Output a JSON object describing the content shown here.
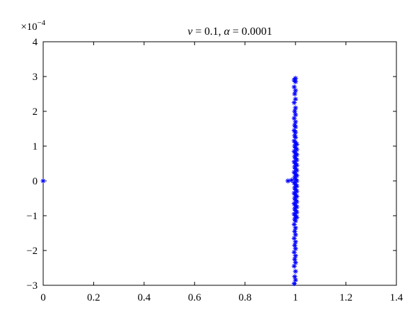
{
  "chart_data": {
    "type": "scatter",
    "title": {
      "greek1": "ν",
      "rest1": " = 0.1, ",
      "greek2": "α",
      "rest2": " = 0.0001"
    },
    "xlabel": "",
    "ylabel": "",
    "xlim": [
      0,
      1.4
    ],
    "ylim": [
      -3,
      4
    ],
    "y_exponent": "×10",
    "y_exponent_power": "−4",
    "x_ticks": [
      0,
      0.2,
      0.4,
      0.6,
      0.8,
      1.0,
      1.2,
      1.4
    ],
    "x_tick_labels": [
      "0",
      "0.2",
      "0.4",
      "0.6",
      "0.8",
      "1",
      "1.2",
      "1.4"
    ],
    "y_ticks": [
      -3,
      -2,
      -1,
      0,
      1,
      2,
      3,
      4
    ],
    "y_tick_labels": [
      "−3",
      "−2",
      "−1",
      "0",
      "1",
      "2",
      "3",
      "4"
    ],
    "grid": false,
    "marker": "asterisk",
    "marker_color": "#0000ff",
    "points": [
      {
        "x": 0.0,
        "y": 0.0
      },
      {
        "x": 0.97,
        "y": 0.0
      },
      {
        "x": 0.985,
        "y": 0.02
      },
      {
        "x": 1.0,
        "y": 2.95
      },
      {
        "x": 0.995,
        "y": 2.9
      },
      {
        "x": 1.0,
        "y": 2.85
      },
      {
        "x": 0.995,
        "y": 2.7
      },
      {
        "x": 1.0,
        "y": 2.6
      },
      {
        "x": 0.997,
        "y": 2.5
      },
      {
        "x": 1.0,
        "y": 2.35
      },
      {
        "x": 0.995,
        "y": 2.25
      },
      {
        "x": 1.0,
        "y": 2.1
      },
      {
        "x": 0.997,
        "y": 2.0
      },
      {
        "x": 1.0,
        "y": 1.9
      },
      {
        "x": 0.995,
        "y": 1.8
      },
      {
        "x": 1.0,
        "y": 1.7
      },
      {
        "x": 0.997,
        "y": 1.6
      },
      {
        "x": 1.0,
        "y": 1.55
      },
      {
        "x": 0.995,
        "y": 1.45
      },
      {
        "x": 1.0,
        "y": 1.4
      },
      {
        "x": 0.997,
        "y": 1.3
      },
      {
        "x": 1.0,
        "y": 1.25
      },
      {
        "x": 0.995,
        "y": 1.15
      },
      {
        "x": 1.0,
        "y": 1.1
      },
      {
        "x": 1.005,
        "y": 1.05
      },
      {
        "x": 0.997,
        "y": 1.0
      },
      {
        "x": 1.0,
        "y": 0.95
      },
      {
        "x": 1.005,
        "y": 0.9
      },
      {
        "x": 0.995,
        "y": 0.85
      },
      {
        "x": 1.0,
        "y": 0.8
      },
      {
        "x": 1.005,
        "y": 0.75
      },
      {
        "x": 0.997,
        "y": 0.7
      },
      {
        "x": 1.0,
        "y": 0.65
      },
      {
        "x": 1.005,
        "y": 0.6
      },
      {
        "x": 0.995,
        "y": 0.55
      },
      {
        "x": 1.0,
        "y": 0.5
      },
      {
        "x": 1.005,
        "y": 0.45
      },
      {
        "x": 0.997,
        "y": 0.4
      },
      {
        "x": 1.0,
        "y": 0.35
      },
      {
        "x": 1.005,
        "y": 0.3
      },
      {
        "x": 0.995,
        "y": 0.25
      },
      {
        "x": 1.0,
        "y": 0.2
      },
      {
        "x": 1.005,
        "y": 0.15
      },
      {
        "x": 0.997,
        "y": 0.1
      },
      {
        "x": 1.0,
        "y": 0.05
      },
      {
        "x": 1.005,
        "y": 0.0
      },
      {
        "x": 0.995,
        "y": -0.05
      },
      {
        "x": 1.0,
        "y": -0.1
      },
      {
        "x": 1.005,
        "y": -0.15
      },
      {
        "x": 0.997,
        "y": -0.2
      },
      {
        "x": 1.0,
        "y": -0.25
      },
      {
        "x": 1.005,
        "y": -0.3
      },
      {
        "x": 0.995,
        "y": -0.35
      },
      {
        "x": 1.0,
        "y": -0.4
      },
      {
        "x": 1.005,
        "y": -0.45
      },
      {
        "x": 0.997,
        "y": -0.5
      },
      {
        "x": 1.0,
        "y": -0.55
      },
      {
        "x": 1.005,
        "y": -0.6
      },
      {
        "x": 0.995,
        "y": -0.65
      },
      {
        "x": 1.0,
        "y": -0.7
      },
      {
        "x": 1.005,
        "y": -0.75
      },
      {
        "x": 0.997,
        "y": -0.8
      },
      {
        "x": 1.0,
        "y": -0.85
      },
      {
        "x": 1.005,
        "y": -0.9
      },
      {
        "x": 0.995,
        "y": -0.95
      },
      {
        "x": 1.0,
        "y": -1.0
      },
      {
        "x": 1.005,
        "y": -1.05
      },
      {
        "x": 0.997,
        "y": -1.1
      },
      {
        "x": 1.0,
        "y": -1.15
      },
      {
        "x": 0.995,
        "y": -1.25
      },
      {
        "x": 1.0,
        "y": -1.35
      },
      {
        "x": 0.997,
        "y": -1.45
      },
      {
        "x": 1.0,
        "y": -1.55
      },
      {
        "x": 0.995,
        "y": -1.65
      },
      {
        "x": 1.0,
        "y": -1.75
      },
      {
        "x": 0.997,
        "y": -1.85
      },
      {
        "x": 1.0,
        "y": -1.95
      },
      {
        "x": 0.995,
        "y": -2.05
      },
      {
        "x": 1.0,
        "y": -2.15
      },
      {
        "x": 0.997,
        "y": -2.25
      },
      {
        "x": 1.0,
        "y": -2.35
      },
      {
        "x": 0.995,
        "y": -2.45
      },
      {
        "x": 1.0,
        "y": -2.6
      },
      {
        "x": 0.997,
        "y": -2.75
      },
      {
        "x": 1.0,
        "y": -2.85
      },
      {
        "x": 0.995,
        "y": -2.95
      }
    ]
  }
}
